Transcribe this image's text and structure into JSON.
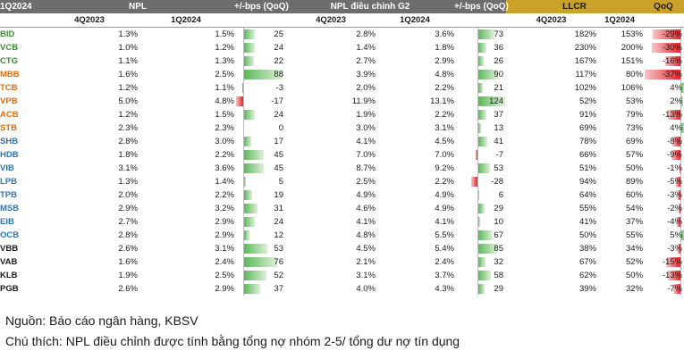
{
  "header": {
    "period": "1Q2024",
    "npl": "NPL",
    "bps1": "+/-bps (QoQ)",
    "npl_adj": "NPL điều chỉnh G2",
    "bps2": "+/-bps (QoQ)",
    "llcr": "LLCR",
    "qoq": "QoQ",
    "sub": [
      "4Q2023",
      "1Q2024",
      "4Q2023",
      "1Q2024",
      "4Q2023",
      "1Q2024"
    ]
  },
  "colors": {
    "positive_bar": "#5cb85c",
    "negative_bar": "#e0262b",
    "header_dark": "#6d6d6d",
    "header_gold": "#c9a227"
  },
  "rows": [
    {
      "bank": "BID",
      "color": "#3a8d2e",
      "npl4": "1.3%",
      "npl1": "1.5%",
      "d1": 25,
      "adj4": "2.8%",
      "adj1": "3.6%",
      "d2": 73,
      "ll4": "182%",
      "ll1": "153%",
      "q": -29,
      "ql": "-29%"
    },
    {
      "bank": "VCB",
      "color": "#3a8d2e",
      "npl4": "1.0%",
      "npl1": "1.2%",
      "d1": 24,
      "adj4": "1.4%",
      "adj1": "1.8%",
      "d2": 36,
      "ll4": "230%",
      "ll1": "200%",
      "q": -30,
      "ql": "-30%"
    },
    {
      "bank": "CTG",
      "color": "#3a8d2e",
      "npl4": "1.1%",
      "npl1": "1.3%",
      "d1": 22,
      "adj4": "2.7%",
      "adj1": "2.9%",
      "d2": 26,
      "ll4": "167%",
      "ll1": "151%",
      "q": -16,
      "ql": "-16%"
    },
    {
      "bank": "MBB",
      "color": "#e36c0a",
      "npl4": "1.6%",
      "npl1": "2.5%",
      "d1": 88,
      "adj4": "3.9%",
      "adj1": "4.8%",
      "d2": 90,
      "ll4": "117%",
      "ll1": "80%",
      "q": -37,
      "ql": "-37%"
    },
    {
      "bank": "TCB",
      "color": "#e36c0a",
      "npl4": "1.2%",
      "npl1": "1.1%",
      "d1": -3,
      "adj4": "2.0%",
      "adj1": "2.2%",
      "d2": 21,
      "ll4": "102%",
      "ll1": "106%",
      "q": 4,
      "ql": "4%"
    },
    {
      "bank": "VPB",
      "color": "#e36c0a",
      "npl4": "5.0%",
      "npl1": "4.8%",
      "d1": -17,
      "adj4": "11.9%",
      "adj1": "13.1%",
      "d2": 124,
      "ll4": "52%",
      "ll1": "53%",
      "q": 2,
      "ql": "2%"
    },
    {
      "bank": "ACB",
      "color": "#e36c0a",
      "npl4": "1.2%",
      "npl1": "1.5%",
      "d1": 24,
      "adj4": "1.9%",
      "adj1": "2.2%",
      "d2": 37,
      "ll4": "91%",
      "ll1": "79%",
      "q": -13,
      "ql": "-13%"
    },
    {
      "bank": "STB",
      "color": "#e36c0a",
      "npl4": "2.3%",
      "npl1": "2.3%",
      "d1": 0,
      "adj4": "3.0%",
      "adj1": "3.1%",
      "d2": 13,
      "ll4": "69%",
      "ll1": "73%",
      "q": 4,
      "ql": "4%"
    },
    {
      "bank": "SHB",
      "color": "#2e75b6",
      "npl4": "2.8%",
      "npl1": "3.0%",
      "d1": 17,
      "adj4": "4.1%",
      "adj1": "4.5%",
      "d2": 41,
      "ll4": "78%",
      "ll1": "69%",
      "q": -8,
      "ql": "-8%"
    },
    {
      "bank": "HDB",
      "color": "#2e75b6",
      "npl4": "1.8%",
      "npl1": "2.2%",
      "d1": 45,
      "adj4": "7.0%",
      "adj1": "7.0%",
      "d2": -7,
      "ll4": "66%",
      "ll1": "57%",
      "q": -9,
      "ql": "-9%"
    },
    {
      "bank": "VIB",
      "color": "#2e75b6",
      "npl4": "3.1%",
      "npl1": "3.6%",
      "d1": 45,
      "adj4": "8.7%",
      "adj1": "9.2%",
      "d2": 53,
      "ll4": "51%",
      "ll1": "50%",
      "q": -1,
      "ql": "-1%"
    },
    {
      "bank": "LPB",
      "color": "#2e75b6",
      "npl4": "1.3%",
      "npl1": "1.4%",
      "d1": 5,
      "adj4": "2.5%",
      "adj1": "2.2%",
      "d2": -28,
      "ll4": "94%",
      "ll1": "89%",
      "q": -5,
      "ql": "-5%"
    },
    {
      "bank": "TPB",
      "color": "#2e75b6",
      "npl4": "2.0%",
      "npl1": "2.2%",
      "d1": 19,
      "adj4": "4.9%",
      "adj1": "4.9%",
      "d2": 6,
      "ll4": "64%",
      "ll1": "60%",
      "q": -3,
      "ql": "-3%"
    },
    {
      "bank": "MSB",
      "color": "#2e75b6",
      "npl4": "2.9%",
      "npl1": "3.2%",
      "d1": 31,
      "adj4": "4.6%",
      "adj1": "4.9%",
      "d2": 29,
      "ll4": "55%",
      "ll1": "54%",
      "q": -2,
      "ql": "-2%"
    },
    {
      "bank": "EIB",
      "color": "#2e75b6",
      "npl4": "2.7%",
      "npl1": "2.9%",
      "d1": 24,
      "adj4": "4.1%",
      "adj1": "4.1%",
      "d2": 10,
      "ll4": "41%",
      "ll1": "37%",
      "q": -4,
      "ql": "-4%"
    },
    {
      "bank": "OCB",
      "color": "#2e75b6",
      "npl4": "2.8%",
      "npl1": "2.9%",
      "d1": 12,
      "adj4": "4.8%",
      "adj1": "5.5%",
      "d2": 67,
      "ll4": "50%",
      "ll1": "55%",
      "q": 5,
      "ql": "5%"
    },
    {
      "bank": "VBB",
      "color": "#1b1b1b",
      "npl4": "2.6%",
      "npl1": "3.1%",
      "d1": 53,
      "adj4": "4.5%",
      "adj1": "5.4%",
      "d2": 85,
      "ll4": "38%",
      "ll1": "34%",
      "q": -3,
      "ql": "-3%"
    },
    {
      "bank": "VAB",
      "color": "#1b1b1b",
      "npl4": "1.6%",
      "npl1": "2.4%",
      "d1": 76,
      "adj4": "2.1%",
      "adj1": "2.4%",
      "d2": 32,
      "ll4": "67%",
      "ll1": "52%",
      "q": -15,
      "ql": "-15%"
    },
    {
      "bank": "KLB",
      "color": "#1b1b1b",
      "npl4": "1.9%",
      "npl1": "2.5%",
      "d1": 52,
      "adj4": "3.1%",
      "adj1": "3.7%",
      "d2": 58,
      "ll4": "62%",
      "ll1": "50%",
      "q": -13,
      "ql": "-13%"
    },
    {
      "bank": "PGB",
      "color": "#1b1b1b",
      "npl4": "2.6%",
      "npl1": "2.9%",
      "d1": 37,
      "adj4": "4.0%",
      "adj1": "4.3%",
      "d2": 29,
      "ll4": "39%",
      "ll1": "32%",
      "q": -7,
      "ql": "-7%"
    }
  ],
  "notes": {
    "source": "Nguồn: Báo cáo ngân hàng, KBSV",
    "note": "Chú thích: NPL điều chỉnh được tính bằng tổng nợ nhóm 2-5/ tổng dư nợ tín dụng"
  }
}
